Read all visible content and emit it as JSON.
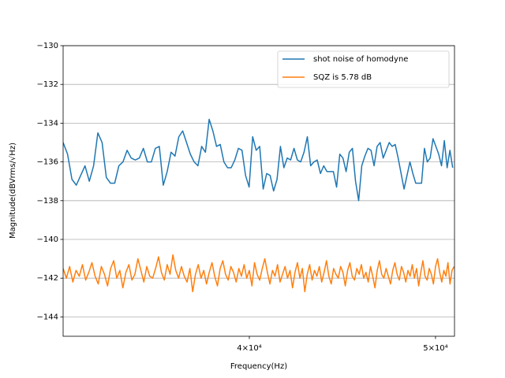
{
  "chart_data": {
    "type": "line",
    "xlabel": "Frequency(Hz)",
    "ylabel": "Magnitude(dBVrms/√Hz)",
    "xscale": "log",
    "xlim": [
      32000,
      51150
    ],
    "xticks": [
      {
        "value": 40000,
        "label": "4×10⁴"
      },
      {
        "value": 50000,
        "label": "5×10⁴"
      }
    ],
    "ylim": [
      -145,
      -130
    ],
    "yticks": [
      {
        "value": -144,
        "label": "−144"
      },
      {
        "value": -142,
        "label": "−142"
      },
      {
        "value": -140,
        "label": "−140"
      },
      {
        "value": -138,
        "label": "−138"
      },
      {
        "value": -136,
        "label": "−136"
      },
      {
        "value": -134,
        "label": "−134"
      },
      {
        "value": -132,
        "label": "−132"
      },
      {
        "value": -130,
        "label": "−130"
      }
    ],
    "grid": "y",
    "legend": "upper right",
    "series": [
      {
        "name": "shot noise of homodyne",
        "color": "#1f77b4",
        "x": [
          32000,
          32170,
          32340,
          32510,
          32680,
          32850,
          33020,
          33190,
          33360,
          33530,
          33700,
          33870,
          34040,
          34210,
          34380,
          34550,
          34720,
          34890,
          35060,
          35230,
          35400,
          35570,
          35740,
          35910,
          36080,
          36250,
          36420,
          36590,
          36760,
          36930,
          37100,
          37270,
          37440,
          37610,
          37780,
          37950,
          38120,
          38290,
          38460,
          38630,
          38800,
          38970,
          39140,
          39310,
          39480,
          39650,
          39820,
          39990,
          40160,
          40330,
          40500,
          40670,
          40840,
          41010,
          41180,
          41350,
          41520,
          41690,
          41860,
          42030,
          42200,
          42370,
          42540,
          42710,
          42880,
          43050,
          43220,
          43390,
          43560,
          43730,
          43900,
          44070,
          44240,
          44410,
          44580,
          44750,
          44920,
          45090,
          45260,
          45430,
          45600,
          45770,
          45940,
          46110,
          46280,
          46450,
          46620,
          46790,
          46960,
          47130,
          47300,
          47470,
          47640,
          47810,
          47980,
          48150,
          48320,
          48490,
          48660,
          48830,
          49000,
          49170,
          49340,
          49510,
          49680,
          49850,
          50020,
          50190,
          50360,
          50530,
          50700,
          50870,
          51040
        ],
        "values": [
          -135.0,
          -135.6,
          -136.9,
          -137.2,
          -136.7,
          -136.2,
          -137.0,
          -136.2,
          -134.5,
          -135.0,
          -136.8,
          -137.1,
          -137.1,
          -136.2,
          -136.0,
          -135.4,
          -135.8,
          -135.9,
          -135.8,
          -135.3,
          -136.0,
          -136.0,
          -135.3,
          -135.2,
          -137.2,
          -136.5,
          -135.5,
          -135.7,
          -134.7,
          -134.4,
          -135.0,
          -135.6,
          -136.0,
          -136.2,
          -135.2,
          -135.5,
          -133.8,
          -134.4,
          -135.2,
          -135.1,
          -136.0,
          -136.3,
          -136.3,
          -135.9,
          -135.3,
          -135.4,
          -136.7,
          -137.3,
          -134.7,
          -135.4,
          -135.2,
          -137.4,
          -136.6,
          -136.7,
          -137.5,
          -136.9,
          -135.2,
          -136.3,
          -135.8,
          -135.9,
          -135.3,
          -135.9,
          -136.0,
          -135.5,
          -134.7,
          -136.2,
          -136.0,
          -135.9,
          -136.6,
          -136.2,
          -136.5,
          -136.5,
          -136.5,
          -137.3,
          -135.6,
          -135.8,
          -136.5,
          -135.5,
          -135.3,
          -137.0,
          -138.0,
          -136.2,
          -135.7,
          -135.3,
          -135.4,
          -136.2,
          -135.2,
          -135.0,
          -135.8,
          -135.4,
          -135.0,
          -135.2,
          -135.1,
          -135.8,
          -136.6,
          -137.4,
          -136.7,
          -136.0,
          -136.6,
          -137.1,
          -137.1,
          -137.1,
          -135.3,
          -136.0,
          -135.8,
          -134.8,
          -135.2,
          -135.6,
          -136.2,
          -134.9,
          -136.3,
          -135.4,
          -136.3
        ]
      },
      {
        "name": "SQZ is 5.78 dB",
        "color": "#ff7f0e",
        "x": [
          32000,
          32125,
          32250,
          32375,
          32500,
          32625,
          32750,
          32875,
          33000,
          33125,
          33250,
          33375,
          33500,
          33625,
          33750,
          33875,
          34000,
          34125,
          34250,
          34375,
          34500,
          34625,
          34750,
          34875,
          35000,
          35125,
          35250,
          35375,
          35500,
          35625,
          35750,
          35875,
          36000,
          36125,
          36250,
          36375,
          36500,
          36625,
          36750,
          36875,
          37000,
          37125,
          37250,
          37375,
          37500,
          37625,
          37750,
          37875,
          38000,
          38125,
          38250,
          38375,
          38500,
          38625,
          38750,
          38875,
          39000,
          39125,
          39250,
          39375,
          39500,
          39625,
          39750,
          39875,
          40000,
          40125,
          40250,
          40375,
          40500,
          40625,
          40750,
          40875,
          41000,
          41125,
          41250,
          41375,
          41500,
          41625,
          41750,
          41875,
          42000,
          42125,
          42250,
          42375,
          42500,
          42625,
          42750,
          42875,
          43000,
          43125,
          43250,
          43375,
          43500,
          43625,
          43750,
          43875,
          44000,
          44125,
          44250,
          44375,
          44500,
          44625,
          44750,
          44875,
          45000,
          45125,
          45250,
          45375,
          45500,
          45625,
          45750,
          45875,
          46000,
          46125,
          46250,
          46375,
          46500,
          46625,
          46750,
          46875,
          47000,
          47125,
          47250,
          47375,
          47500,
          47625,
          47750,
          47875,
          48000,
          48125,
          48250,
          48375,
          48500,
          48625,
          48750,
          48875,
          49000,
          49125,
          49250,
          49375,
          49500,
          49625,
          49750,
          49875,
          50000,
          50125,
          50250,
          50375,
          50500,
          50625,
          50750,
          50875,
          51000,
          51125
        ],
        "values": [
          -141.5,
          -142.0,
          -141.4,
          -142.2,
          -141.6,
          -141.9,
          -141.3,
          -142.1,
          -141.7,
          -141.2,
          -141.9,
          -142.3,
          -141.4,
          -141.8,
          -142.4,
          -141.5,
          -141.1,
          -142.0,
          -141.6,
          -142.5,
          -141.7,
          -141.3,
          -142.1,
          -141.8,
          -141.0,
          -141.6,
          -142.2,
          -141.4,
          -141.9,
          -142.0,
          -141.5,
          -140.9,
          -141.7,
          -142.1,
          -141.3,
          -141.8,
          -140.8,
          -141.6,
          -142.0,
          -141.4,
          -141.9,
          -142.2,
          -141.5,
          -142.7,
          -141.8,
          -141.3,
          -142.0,
          -141.6,
          -142.3,
          -141.7,
          -141.2,
          -141.9,
          -142.4,
          -141.5,
          -141.1,
          -141.8,
          -142.1,
          -141.4,
          -141.7,
          -142.2,
          -141.5,
          -141.9,
          -141.3,
          -142.0,
          -141.6,
          -142.4,
          -141.2,
          -141.8,
          -142.1,
          -141.5,
          -141.0,
          -141.7,
          -142.3,
          -141.6,
          -141.9,
          -141.3,
          -142.2,
          -141.8,
          -141.4,
          -142.0,
          -141.6,
          -142.5,
          -141.7,
          -141.2,
          -142.0,
          -141.5,
          -142.7,
          -141.8,
          -141.3,
          -142.1,
          -141.6,
          -141.9,
          -141.4,
          -142.2,
          -141.7,
          -141.1,
          -141.9,
          -142.3,
          -141.5,
          -141.8,
          -142.0,
          -141.4,
          -141.7,
          -142.4,
          -141.6,
          -141.2,
          -141.9,
          -142.1,
          -141.5,
          -141.8,
          -141.3,
          -142.0,
          -141.7,
          -142.2,
          -141.4,
          -141.9,
          -142.5,
          -141.6,
          -141.1,
          -141.8,
          -142.0,
          -141.5,
          -141.9,
          -142.3,
          -141.6,
          -141.2,
          -141.8,
          -142.1,
          -141.4,
          -141.7,
          -142.2,
          -141.6,
          -141.9,
          -141.3,
          -142.0,
          -141.5,
          -142.4,
          -141.7,
          -141.1,
          -141.9,
          -142.1,
          -141.5,
          -141.8,
          -142.3,
          -141.4,
          -141.0,
          -141.7,
          -142.2,
          -141.6,
          -141.9,
          -141.2,
          -142.3,
          -141.6,
          -141.4
        ]
      }
    ]
  }
}
